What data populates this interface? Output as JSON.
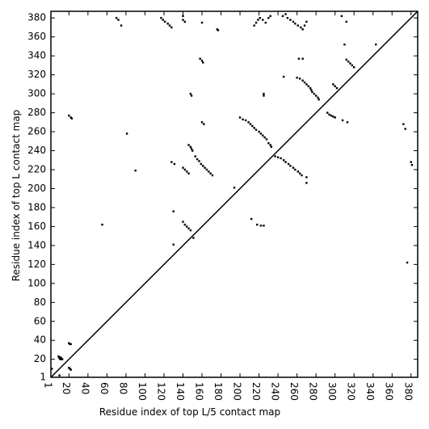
{
  "chart_data": {
    "type": "scatter",
    "xlabel": "Residue index of top L/5 contact map",
    "ylabel": "Residue index of top L contact map",
    "xlim": [
      1,
      387
    ],
    "ylim": [
      1,
      387
    ],
    "xticks": [
      1,
      20,
      40,
      60,
      80,
      100,
      120,
      140,
      160,
      180,
      200,
      220,
      240,
      260,
      280,
      300,
      320,
      340,
      360,
      380
    ],
    "yticks": [
      1,
      20,
      40,
      60,
      80,
      100,
      120,
      140,
      160,
      180,
      200,
      220,
      240,
      260,
      280,
      300,
      320,
      340,
      360,
      380
    ],
    "diagonal": true,
    "series": [
      {
        "color": "#000000",
        "x": [
          9,
          10,
          11,
          12,
          13,
          10,
          11,
          20,
          21,
          22,
          20,
          21,
          22,
          10,
          2,
          70,
          72,
          75,
          117,
          119,
          121,
          124,
          126,
          128,
          140,
          140,
          142,
          148,
          149,
          158,
          160,
          161,
          160,
          176,
          177,
          20,
          22,
          23,
          215,
          217,
          219,
          221,
          224,
          227,
          230,
          232,
          225,
          225,
          245,
          248,
          250,
          253,
          256,
          258,
          261,
          264,
          266,
          268,
          270,
          262,
          266,
          246,
          260,
          263,
          266,
          268,
          270,
          272,
          274,
          275,
          276,
          278,
          280,
          282,
          283,
          298,
          300,
          302,
          292,
          294,
          296,
          298,
          300,
          308,
          313,
          312,
          314,
          316,
          318,
          320,
          343,
          307,
          312,
          310,
          200,
          203,
          206,
          209,
          211,
          213,
          215,
          217,
          220,
          222,
          224,
          226,
          228,
          230,
          232,
          233,
          160,
          162,
          81,
          237,
          240,
          243,
          246,
          248,
          251,
          253,
          256,
          258,
          261,
          263,
          265,
          270,
          270,
          140,
          142,
          144,
          146,
          128,
          131,
          146,
          148,
          149,
          150,
          153,
          155,
          157,
          159,
          161,
          163,
          165,
          167,
          169,
          171,
          90,
          140,
          142,
          144,
          146,
          148,
          130,
          130,
          218,
          222,
          225,
          212,
          151,
          194,
          55,
          372,
          374,
          380,
          381,
          376
        ],
        "values": [
          23,
          22,
          22,
          21,
          20,
          21,
          20,
          37,
          36,
          36,
          11,
          10,
          9,
          3,
          10,
          380,
          378,
          372,
          380,
          378,
          376,
          374,
          372,
          370,
          382,
          378,
          376,
          300,
          298,
          337,
          335,
          333,
          375,
          368,
          367,
          277,
          275,
          274,
          372,
          375,
          378,
          380,
          378,
          375,
          380,
          382,
          300,
          298,
          382,
          384,
          380,
          378,
          376,
          374,
          372,
          370,
          368,
          372,
          376,
          337,
          337,
          318,
          317,
          316,
          314,
          312,
          310,
          308,
          306,
          304,
          302,
          300,
          298,
          296,
          294,
          310,
          308,
          306,
          280,
          278,
          277,
          276,
          275,
          272,
          270,
          336,
          334,
          332,
          330,
          328,
          352,
          382,
          376,
          352,
          275,
          273,
          272,
          270,
          268,
          266,
          264,
          262,
          260,
          258,
          256,
          254,
          252,
          248,
          246,
          244,
          270,
          268,
          258,
          234,
          233,
          232,
          230,
          228,
          226,
          224,
          222,
          220,
          218,
          216,
          214,
          212,
          206,
          222,
          220,
          218,
          216,
          228,
          226,
          246,
          244,
          242,
          240,
          234,
          231,
          229,
          226,
          224,
          222,
          220,
          218,
          216,
          214,
          219,
          165,
          162,
          160,
          158,
          156,
          176,
          141,
          162,
          161,
          161,
          168,
          148,
          201,
          162,
          268,
          263,
          228,
          225,
          122
        ]
      }
    ]
  }
}
